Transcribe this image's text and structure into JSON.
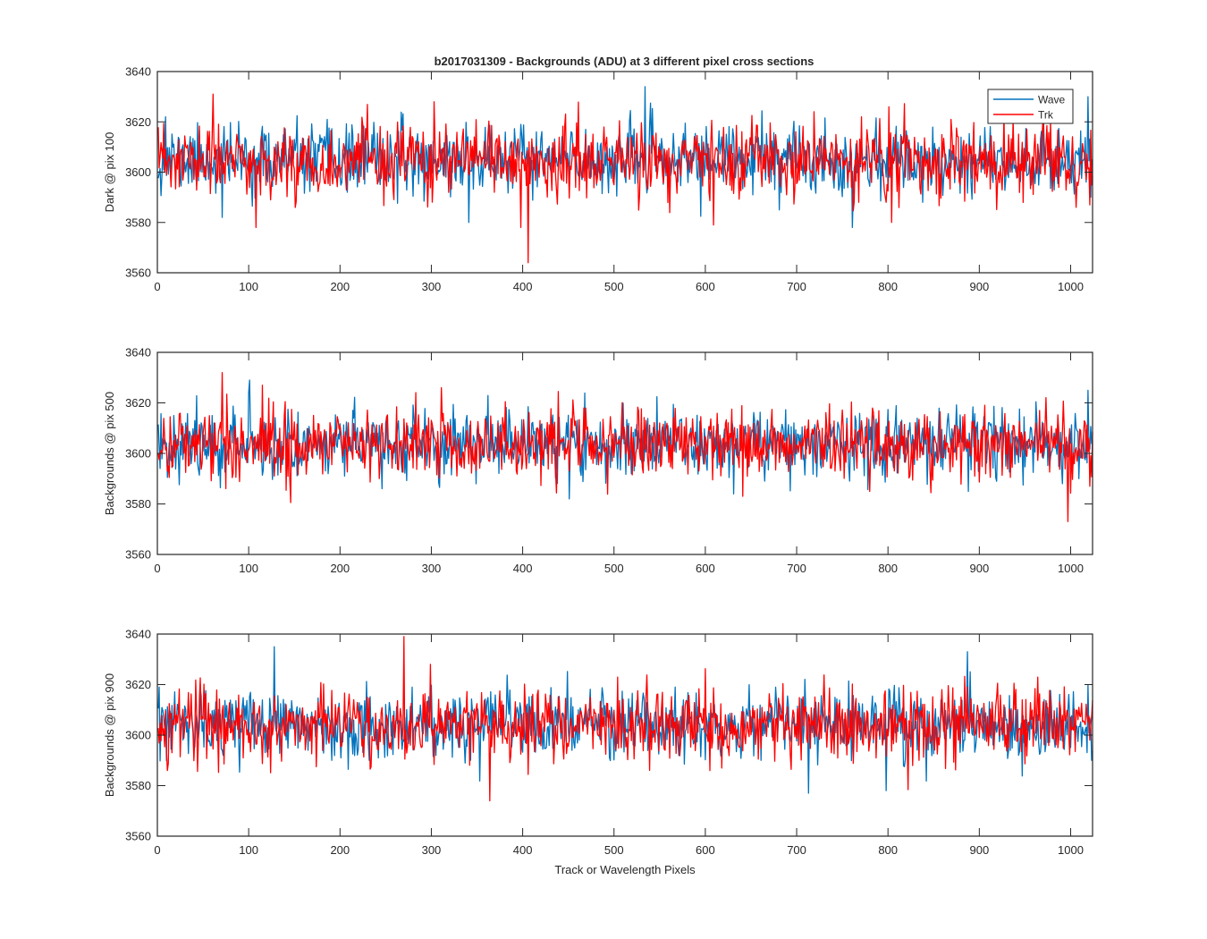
{
  "chart_data": {
    "type": "line",
    "title": "b2017031309 - Backgrounds (ADU) at 3 different pixel cross sections",
    "xlabel": "Track or Wavelength Pixels",
    "xlim": [
      0,
      1024
    ],
    "xticks": [
      0,
      100,
      200,
      300,
      400,
      500,
      600,
      700,
      800,
      900,
      1000
    ],
    "ylim": [
      3560,
      3640
    ],
    "yticks": [
      3560,
      3580,
      3600,
      3620,
      3640
    ],
    "n_points": 1024,
    "legend": {
      "location": "top-right",
      "entries": [
        "Wave",
        "Trk"
      ]
    },
    "colors": {
      "Wave": "#0072BD",
      "Trk": "#FF0000"
    },
    "panels": [
      {
        "ylabel": "Dark @ pix 100",
        "series": [
          {
            "name": "Wave",
            "mean": 3605,
            "sd": 6.5,
            "seed": 11,
            "spikes": [
              [
                533,
                3634
              ],
              [
                1018,
                3630
              ],
              [
                8,
                3622
              ],
              [
                760,
                3578
              ],
              [
                70,
                3582
              ],
              [
                340,
                3580
              ],
              [
                680,
                3585
              ],
              [
                1021,
                3590
              ]
            ]
          },
          {
            "name": "Trk",
            "mean": 3604,
            "sd": 7,
            "seed": 23,
            "spikes": [
              [
                60,
                3631
              ],
              [
                405,
                3564
              ],
              [
                397,
                3578
              ],
              [
                107,
                3578
              ],
              [
                608,
                3579
              ],
              [
                803,
                3580
              ],
              [
                1005,
                3586
              ],
              [
                302,
                3628
              ],
              [
                800,
                3626
              ],
              [
                1020,
                3587
              ]
            ]
          }
        ]
      },
      {
        "ylabel": "Backgrounds @ pix 500",
        "series": [
          {
            "name": "Wave",
            "mean": 3604,
            "sd": 6.5,
            "seed": 37,
            "spikes": [
              [
                100,
                3629
              ],
              [
                450,
                3582
              ],
              [
                1018,
                3625
              ],
              [
                990,
                3588
              ],
              [
                630,
                3584
              ]
            ]
          },
          {
            "name": "Trk",
            "mean": 3604,
            "sd": 7,
            "seed": 41,
            "spikes": [
              [
                70,
                3632
              ],
              [
                996,
                3573
              ],
              [
                1020,
                3587
              ],
              [
                640,
                3583
              ],
              [
                310,
                3626
              ]
            ]
          }
        ]
      },
      {
        "ylabel": "Backgrounds @ pix 900",
        "series": [
          {
            "name": "Wave",
            "mean": 3604,
            "sd": 6.5,
            "seed": 53,
            "spikes": [
              [
                127,
                3635
              ],
              [
                886,
                3633
              ],
              [
                712,
                3577
              ],
              [
                797,
                3578
              ],
              [
                1018,
                3620
              ],
              [
                1022,
                3590
              ]
            ]
          },
          {
            "name": "Trk",
            "mean": 3604,
            "sd": 7,
            "seed": 67,
            "spikes": [
              [
                269,
                3639
              ],
              [
                363,
                3574
              ],
              [
                10,
                3586
              ],
              [
                1020,
                3598
              ]
            ]
          }
        ]
      }
    ]
  }
}
